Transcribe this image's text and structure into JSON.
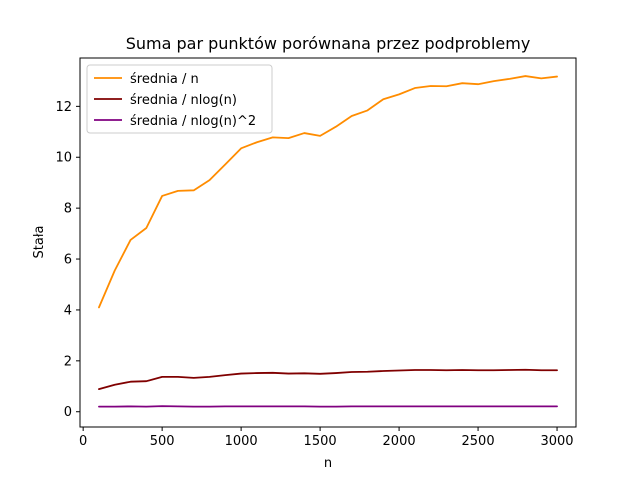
{
  "chart_data": {
    "type": "line",
    "title": "Suma par punktów porównana przez podproblemy",
    "xlabel": "n",
    "ylabel": "Stała",
    "xlim": [
      -20,
      3120
    ],
    "ylim": [
      -0.6,
      13.9
    ],
    "xticks": [
      0,
      500,
      1000,
      1500,
      2000,
      2500,
      3000
    ],
    "yticks": [
      0,
      2,
      4,
      6,
      8,
      10,
      12
    ],
    "grid": false,
    "legend_position": "top-left",
    "x": [
      100,
      200,
      300,
      400,
      500,
      600,
      700,
      800,
      900,
      1000,
      1100,
      1200,
      1300,
      1400,
      1500,
      1600,
      1700,
      1800,
      1900,
      2000,
      2100,
      2200,
      2300,
      2400,
      2500,
      2600,
      2700,
      2800,
      2900,
      3000
    ],
    "series": [
      {
        "name": "średnia / n",
        "color": "#ff8c00",
        "values": [
          4.1,
          5.55,
          6.75,
          7.22,
          8.48,
          8.68,
          8.7,
          9.1,
          9.72,
          10.35,
          10.59,
          10.78,
          10.75,
          10.95,
          10.84,
          11.2,
          11.62,
          11.84,
          12.28,
          12.47,
          12.72,
          12.8,
          12.79,
          12.91,
          12.87,
          12.99,
          13.08,
          13.19,
          13.1,
          13.17
        ]
      },
      {
        "name": "średnia / nlog(n)",
        "color": "#800000",
        "values": [
          0.89,
          1.06,
          1.18,
          1.2,
          1.37,
          1.37,
          1.33,
          1.37,
          1.44,
          1.5,
          1.52,
          1.53,
          1.5,
          1.51,
          1.49,
          1.52,
          1.56,
          1.57,
          1.6,
          1.62,
          1.64,
          1.64,
          1.63,
          1.64,
          1.63,
          1.63,
          1.64,
          1.65,
          1.63,
          1.63
        ]
      },
      {
        "name": "średnia / nlog(n)^2",
        "color": "#800080",
        "values": [
          0.2,
          0.2,
          0.21,
          0.2,
          0.22,
          0.21,
          0.2,
          0.2,
          0.21,
          0.21,
          0.21,
          0.21,
          0.21,
          0.21,
          0.2,
          0.2,
          0.21,
          0.21,
          0.21,
          0.21,
          0.21,
          0.21,
          0.21,
          0.21,
          0.21,
          0.21,
          0.21,
          0.21,
          0.21,
          0.21
        ]
      }
    ]
  }
}
